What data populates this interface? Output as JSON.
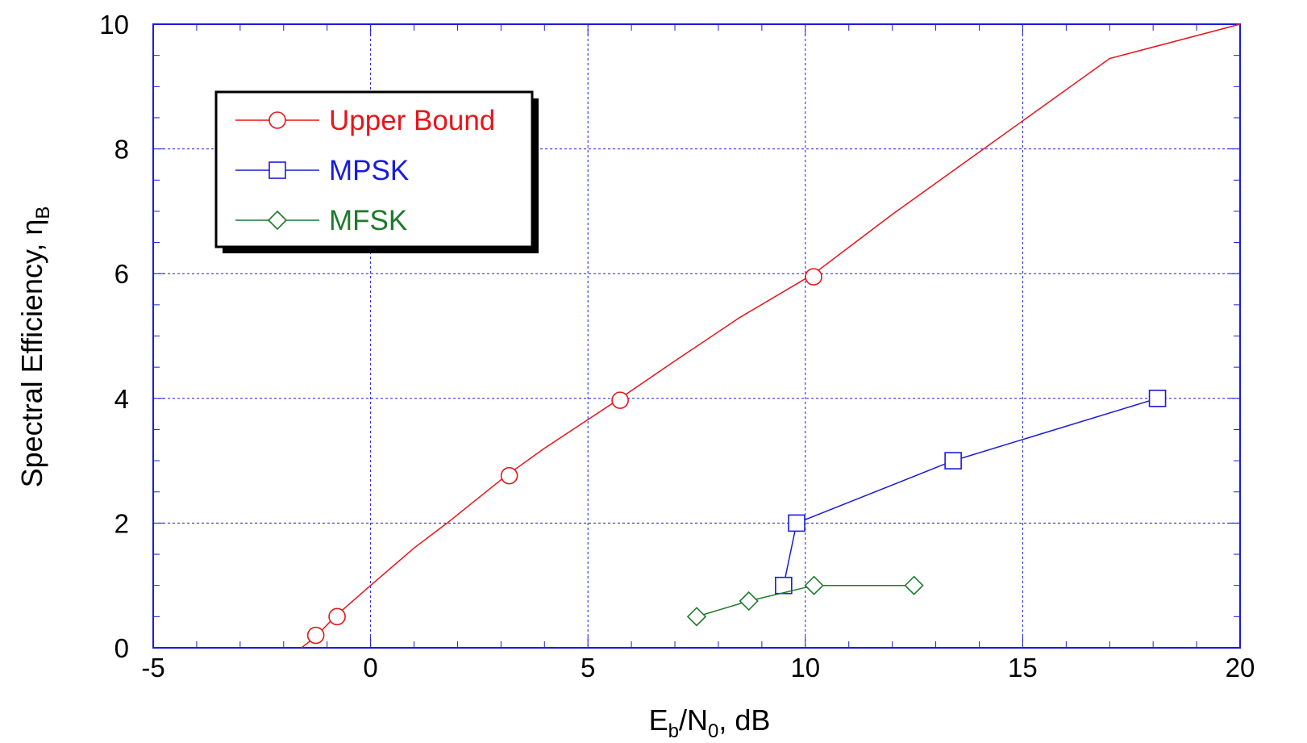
{
  "chart_data": {
    "type": "line",
    "xlabel": {
      "main": "E",
      "sub1": "b",
      "mid": "/N",
      "sub2": "0",
      "tail": ", dB"
    },
    "ylabel": {
      "main": "Spectral Efficiency, η",
      "sub": "B"
    },
    "xlim": [
      -5,
      20
    ],
    "ylim": [
      0,
      10
    ],
    "xticks": [
      "-5",
      "0",
      "5",
      "10",
      "15",
      "20"
    ],
    "yticks": [
      "0",
      "2",
      "4",
      "6",
      "8",
      "10"
    ],
    "grid": true,
    "legend_position": "top-left",
    "series": [
      {
        "name": "Upper Bound",
        "color": "#e8141a",
        "marker": "circle",
        "line": [
          [
            -1.59,
            0
          ],
          [
            -1.26,
            0.18
          ],
          [
            -0.82,
            0.5
          ],
          [
            0.0,
            1.0
          ],
          [
            1.0,
            1.6
          ],
          [
            1.76,
            2.0
          ],
          [
            3.1,
            2.75
          ],
          [
            4.0,
            3.2
          ],
          [
            5.74,
            4.0
          ],
          [
            7.0,
            4.6
          ],
          [
            8.5,
            5.3
          ],
          [
            10.2,
            6.0
          ],
          [
            12.0,
            6.95
          ],
          [
            14.0,
            7.95
          ],
          [
            15.0,
            8.45
          ],
          [
            17.0,
            9.45
          ],
          [
            20.0,
            10.0
          ]
        ],
        "points": [
          [
            -1.26,
            0.2
          ],
          [
            -0.77,
            0.5
          ],
          [
            3.19,
            2.76
          ],
          [
            5.74,
            3.97
          ],
          [
            10.19,
            5.95
          ]
        ]
      },
      {
        "name": "MPSK",
        "color": "#1a1ae0",
        "marker": "square",
        "line": [
          [
            9.5,
            1.0
          ],
          [
            9.8,
            2.0
          ],
          [
            13.4,
            3.0
          ],
          [
            18.1,
            4.0
          ]
        ],
        "points": [
          [
            9.5,
            1.0
          ],
          [
            9.8,
            2.0
          ],
          [
            13.4,
            3.0
          ],
          [
            18.1,
            4.0
          ]
        ]
      },
      {
        "name": "MFSK",
        "color": "#1e7a2c",
        "marker": "diamond",
        "line": [
          [
            7.5,
            0.5
          ],
          [
            8.7,
            0.75
          ],
          [
            10.2,
            1.0
          ],
          [
            12.5,
            1.0
          ]
        ],
        "points": [
          [
            7.5,
            0.5
          ],
          [
            8.7,
            0.75
          ],
          [
            10.2,
            1.0
          ],
          [
            12.5,
            1.0
          ]
        ]
      }
    ]
  }
}
